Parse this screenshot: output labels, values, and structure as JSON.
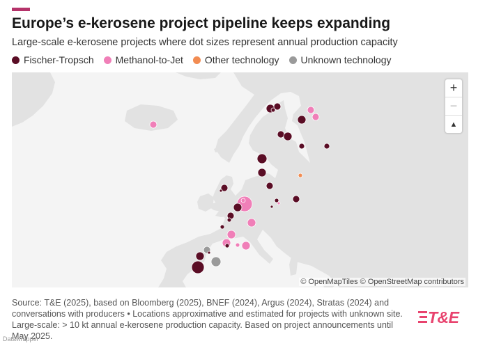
{
  "header": {
    "title": "Europe’s e-kerosene project pipeline keeps expanding",
    "subtitle": "Large-scale e-kerosene projects where dot sizes represent annual production capacity",
    "accent_color": "#b5336a"
  },
  "legend": [
    {
      "label": "Fischer-Tropsch",
      "color": "#5a0d25"
    },
    {
      "label": "Methanol-to-Jet",
      "color": "#f07fb8"
    },
    {
      "label": "Other technology",
      "color": "#f28c52"
    },
    {
      "label": "Unknown technology",
      "color": "#9a9a9a"
    }
  ],
  "map": {
    "land_color": "#e2e2e2",
    "water_color": "#f4f4f4",
    "zoom_in_label": "+",
    "zoom_out_label": "−",
    "compass_label": "▲",
    "attribution": "© OpenMapTiles © OpenStreetMap contributors"
  },
  "source_text": "Source: T&E (2025), based on Bloomberg (2025), BNEF (2024), Argus (2024), Stratas (2024) and conversations with producers • Locations approximative and estimated for projects with unknown site. Large-scale: > 10 kt annual e-kerosene production capacity. Based on project announcements until May 2025.",
  "logo": {
    "text": "T&E",
    "color": "#e8436e"
  },
  "watermark": "Datawrapper"
}
